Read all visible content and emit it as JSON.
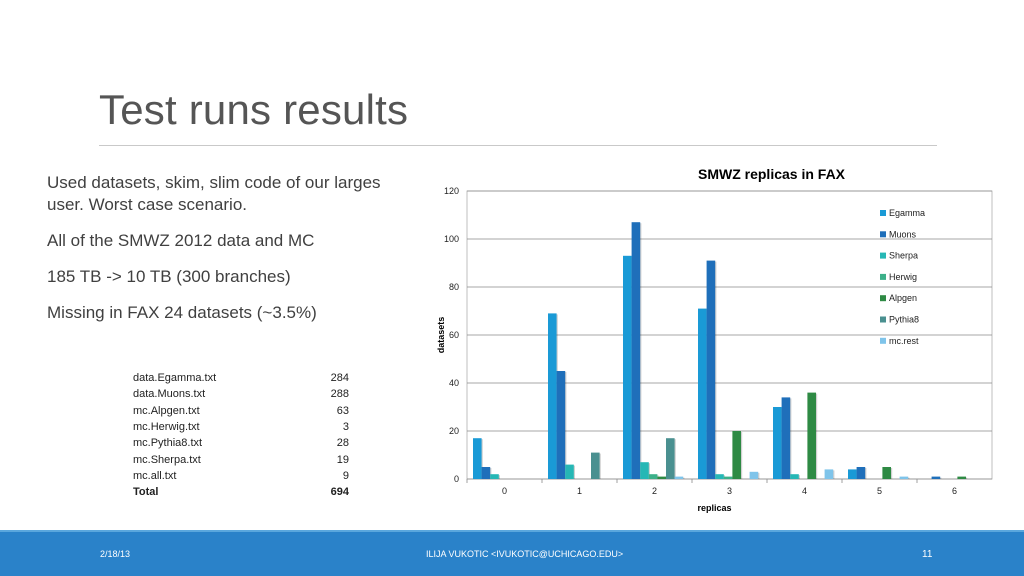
{
  "slide": {
    "title": "Test runs results",
    "bullets": [
      "Used datasets, skim, slim code of our larges user. Worst case scenario.",
      "All of the SMWZ 2012 data and MC",
      "185 TB -> 10 TB (300 branches)",
      "Missing in FAX 24 datasets (~3.5%)"
    ]
  },
  "files_table": {
    "rows": [
      {
        "name": "data.Egamma.txt",
        "count": "284"
      },
      {
        "name": "data.Muons.txt",
        "count": "288"
      },
      {
        "name": "mc.Alpgen.txt",
        "count": "63"
      },
      {
        "name": "mc.Herwig.txt",
        "count": "3"
      },
      {
        "name": "mc.Pythia8.txt",
        "count": "28"
      },
      {
        "name": "mc.Sherpa.txt",
        "count": "19"
      },
      {
        "name": "mc.all.txt",
        "count": "9"
      }
    ],
    "total": {
      "name": "Total",
      "count": "694"
    }
  },
  "chart_data": {
    "type": "bar",
    "title": "SMWZ replicas in FAX",
    "xlabel": "replicas",
    "ylabel": "datasets",
    "categories": [
      "0",
      "1",
      "2",
      "3",
      "4",
      "5",
      "6"
    ],
    "ylim": [
      0,
      120
    ],
    "yticks": [
      0,
      20,
      40,
      60,
      80,
      100,
      120
    ],
    "grid": true,
    "legend_position": "right",
    "series": [
      {
        "name": "Egamma",
        "color": "#1a9ad6",
        "values": [
          17,
          69,
          93,
          71,
          30,
          4,
          0
        ]
      },
      {
        "name": "Muons",
        "color": "#1f6fba",
        "values": [
          5,
          45,
          107,
          91,
          34,
          5,
          1
        ]
      },
      {
        "name": "Sherpa",
        "color": "#26b7b5",
        "values": [
          2,
          6,
          7,
          2,
          2,
          0,
          0
        ]
      },
      {
        "name": "Herwig",
        "color": "#3cb089",
        "values": [
          0,
          0,
          2,
          1,
          0,
          0,
          0
        ]
      },
      {
        "name": "Alpgen",
        "color": "#2e8a44",
        "values": [
          0,
          0,
          1,
          20,
          36,
          5,
          1
        ]
      },
      {
        "name": "Pythia8",
        "color": "#4a9090",
        "values": [
          0,
          11,
          17,
          0,
          0,
          0,
          0
        ]
      },
      {
        "name": "mc.rest",
        "color": "#7fc4ea",
        "values": [
          0,
          0,
          1,
          3,
          4,
          1,
          0
        ]
      }
    ]
  },
  "footer": {
    "date": "2/18/13",
    "author": "ILIJA VUKOTIC <IVUKOTIC@UCHICAGO.EDU>",
    "page": "11"
  }
}
